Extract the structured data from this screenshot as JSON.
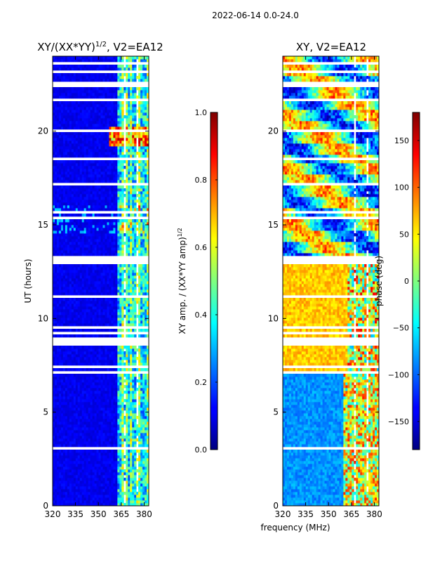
{
  "figure_title": "2022-06-14 0.0-24.0",
  "shared_xlabel": "frequency (MHz)",
  "chart_data": [
    {
      "type": "heatmap",
      "title_prefix": "XY/(XX*YY)",
      "title_sup": "1/2",
      "title_suffix": ", V2=EA12",
      "ylabel": "UT (hours)",
      "xlim": [
        320,
        383
      ],
      "ylim": [
        0,
        24
      ],
      "xticks": [
        320,
        335,
        350,
        365,
        380
      ],
      "yticks": [
        0,
        5,
        10,
        15,
        20
      ],
      "colorbar": {
        "label_main": "XY amp. / (XX*YY amp)",
        "label_sup": "1/2",
        "range": [
          0.0,
          1.0
        ],
        "ticks": [
          "0.0",
          "0.2",
          "0.4",
          "0.6",
          "0.8",
          "1.0"
        ],
        "colormap": "jet"
      }
    },
    {
      "type": "heatmap",
      "title": "XY, V2=EA12",
      "ylabel": "",
      "xlim": [
        320,
        383
      ],
      "ylim": [
        0,
        24
      ],
      "xticks": [
        320,
        335,
        350,
        365,
        380
      ],
      "yticks": [
        0,
        5,
        10,
        15,
        20
      ],
      "colorbar": {
        "label": "phase (deg)",
        "range": [
          -180,
          180
        ],
        "ticks": [
          "−150",
          "−100",
          "−50",
          "0",
          "50",
          "100",
          "150"
        ],
        "colormap": "jet"
      }
    }
  ]
}
